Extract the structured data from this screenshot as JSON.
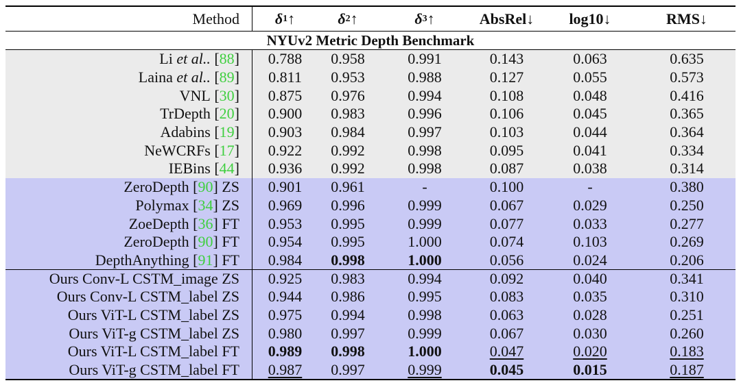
{
  "header": [
    "Method",
    {
      "symbol": "δ",
      "sub": "1",
      "arrow": "↑"
    },
    {
      "symbol": "δ",
      "sub": "2",
      "arrow": "↑"
    },
    {
      "symbol": "δ",
      "sub": "3",
      "arrow": "↑"
    },
    "AbsRel↓",
    "log10↓",
    "RMS↓"
  ],
  "subtitle": "NYUv2 Metric Depth Benchmark",
  "sections": [
    {
      "background": "#ebebeb",
      "rows": [
        {
          "method": "Li",
          "em": "et al..",
          "ref": "88",
          "values": [
            "0.788",
            "0.958",
            "0.991",
            "0.143",
            "0.063",
            "0.635"
          ]
        },
        {
          "method": "Laina",
          "em": "et al..",
          "ref": "89",
          "values": [
            "0.811",
            "0.953",
            "0.988",
            "0.127",
            "0.055",
            "0.573"
          ]
        },
        {
          "method": "VNL",
          "ref": "30",
          "values": [
            "0.875",
            "0.976",
            "0.994",
            "0.108",
            "0.048",
            "0.416"
          ]
        },
        {
          "method": "TrDepth",
          "ref": "20",
          "values": [
            "0.900",
            "0.983",
            "0.996",
            "0.106",
            "0.045",
            "0.365"
          ]
        },
        {
          "method": "Adabins",
          "ref": "19",
          "values": [
            "0.903",
            "0.984",
            "0.997",
            "0.103",
            "0.044",
            "0.364"
          ]
        },
        {
          "method": "NeWCRFs",
          "ref": "17",
          "values": [
            "0.922",
            "0.992",
            "0.998",
            "0.095",
            "0.041",
            "0.334"
          ]
        },
        {
          "method": "IEBins",
          "ref": "44",
          "values": [
            "0.936",
            "0.992",
            "0.998",
            "0.087",
            "0.038",
            "0.314"
          ]
        }
      ]
    },
    {
      "background": "#c9caf5",
      "rows": [
        {
          "method": "ZeroDepth",
          "ref": "90",
          "mode": "ZS",
          "values": [
            "0.901",
            "0.961",
            "-",
            "0.100",
            "-",
            "0.380"
          ]
        },
        {
          "method": "Polymax",
          "ref": "34",
          "mode": "ZS",
          "values": [
            "0.969",
            "0.996",
            "0.999",
            "0.067",
            "0.029",
            "0.250"
          ]
        },
        {
          "method": "ZoeDepth",
          "ref": "36",
          "mode": "FT",
          "values": [
            "0.953",
            "0.995",
            "0.999",
            "0.077",
            "0.033",
            "0.277"
          ]
        },
        {
          "method": "ZeroDepth",
          "ref": "90",
          "mode": "FT",
          "values": [
            "0.954",
            "0.995",
            "1.000",
            "0.074",
            "0.103",
            "0.269"
          ]
        },
        {
          "method": "DepthAnything",
          "ref": "91",
          "mode": "FT",
          "values": [
            "0.984",
            "0.998",
            "1.000",
            "0.056",
            "0.024",
            "0.206"
          ],
          "bold": [
            1,
            2
          ]
        }
      ]
    },
    {
      "background": "#c9caf5",
      "separator": true,
      "rows": [
        {
          "method": "Ours Conv-L CSTM_image ZS",
          "values": [
            "0.925",
            "0.983",
            "0.994",
            "0.092",
            "0.040",
            "0.341"
          ]
        },
        {
          "method": "Ours Conv-L CSTM_label ZS",
          "values": [
            "0.944",
            "0.986",
            "0.995",
            "0.083",
            "0.035",
            "0.310"
          ]
        },
        {
          "method": "Ours ViT-L CSTM_label ZS",
          "values": [
            "0.975",
            "0.994",
            "0.998",
            "0.063",
            "0.028",
            "0.251"
          ]
        },
        {
          "method": "Ours ViT-g CSTM_label ZS",
          "values": [
            "0.980",
            "0.997",
            "0.999",
            "0.067",
            "0.030",
            "0.260"
          ]
        },
        {
          "method": "Ours ViT-L CSTM_label FT",
          "values": [
            "0.989",
            "0.998",
            "1.000",
            "0.047",
            "0.020",
            "0.183"
          ],
          "bold": [
            0,
            1,
            2
          ],
          "underline": [
            3,
            4,
            5
          ]
        },
        {
          "method": "Ours ViT-g CSTM_label FT",
          "values": [
            "0.987",
            "0.997",
            "0.999",
            "0.045",
            "0.015",
            "0.187"
          ],
          "bold": [
            3,
            4
          ],
          "underline": [
            0,
            2,
            5
          ]
        }
      ]
    }
  ]
}
